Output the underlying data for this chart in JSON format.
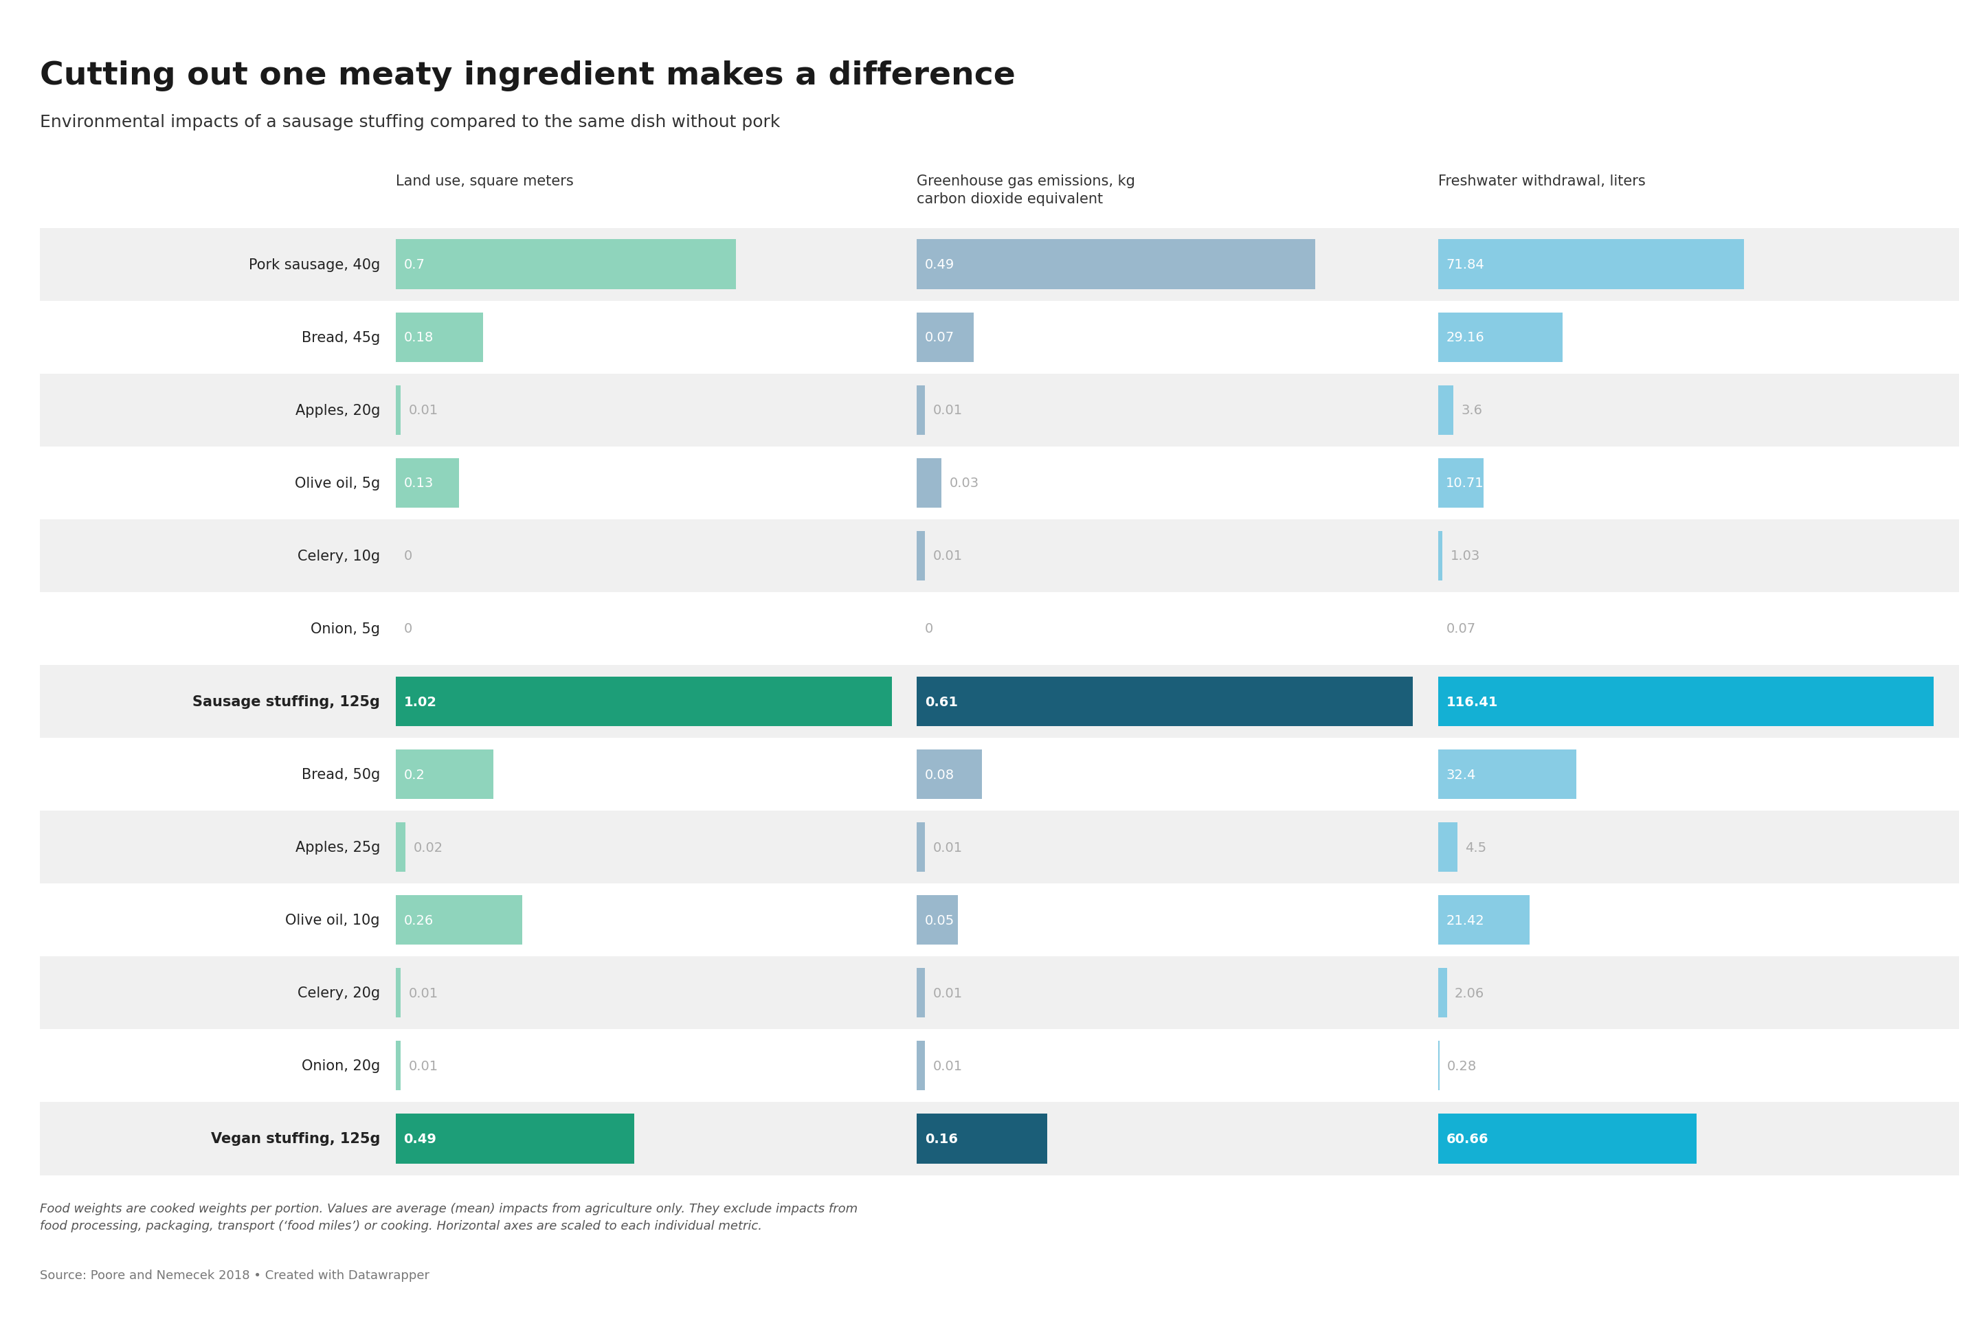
{
  "title": "Cutting out one meaty ingredient makes a difference",
  "subtitle": "Environmental impacts of a sausage stuffing compared to the same dish without pork",
  "footnote": "Food weights are cooked weights per portion. Values are average (mean) impacts from agriculture only. They exclude impacts from\nfood processing, packaging, transport (‘food miles’) or cooking. Horizontal axes are scaled to each individual metric.",
  "source": "Source: Poore and Nemecek 2018 • Created with Datawrapper",
  "background_color": "#ffffff",
  "row_bg_colors": [
    "#f0f0f0",
    "#ffffff"
  ],
  "labels": [
    "Pork sausage, 40g",
    "Bread, 45g",
    "Apples, 20g",
    "Olive oil, 5g",
    "Celery, 10g",
    "Onion, 5g",
    "Sausage stuffing, 125g",
    "Bread, 50g",
    "Apples, 25g",
    "Olive oil, 10g",
    "Celery, 20g",
    "Onion, 20g",
    "Vegan stuffing, 125g"
  ],
  "bold_rows": [
    6,
    12
  ],
  "col_headers": [
    "Land use, square meters",
    "Greenhouse gas emissions, kg\ncarbon dioxide equivalent",
    "Freshwater withdrawal, liters"
  ],
  "land_use": [
    0.7,
    0.18,
    0.01,
    0.13,
    0.0,
    0.0,
    1.02,
    0.2,
    0.02,
    0.26,
    0.01,
    0.01,
    0.49
  ],
  "ghg": [
    0.49,
    0.07,
    0.01,
    0.03,
    0.01,
    0.0,
    0.61,
    0.08,
    0.01,
    0.05,
    0.01,
    0.01,
    0.16
  ],
  "freshwater": [
    71.84,
    29.16,
    3.6,
    10.71,
    1.03,
    0.07,
    116.41,
    32.4,
    4.5,
    21.42,
    2.06,
    0.28,
    60.66
  ],
  "land_use_max": 1.02,
  "ghg_max": 0.61,
  "freshwater_max": 116.41,
  "colors": {
    "sausage_land": "#1d9e78",
    "sausage_ghg": "#1b5e78",
    "sausage_fw": "#14b0d4",
    "vegan_land": "#1d9e78",
    "vegan_ghg": "#1b5e78",
    "vegan_fw": "#14b0d4",
    "ingr_land": "#8fd4bc",
    "ingr_ghg": "#9ab8cc",
    "ingr_fw": "#88cce4",
    "text_in": "#ffffff",
    "text_out": "#aaaaaa",
    "text_bold_in": "#ffffff"
  },
  "label_fontsize": 15,
  "value_fontsize": 14,
  "header_fontsize": 15,
  "title_fontsize": 34,
  "subtitle_fontsize": 18,
  "footnote_fontsize": 13,
  "source_fontsize": 13
}
